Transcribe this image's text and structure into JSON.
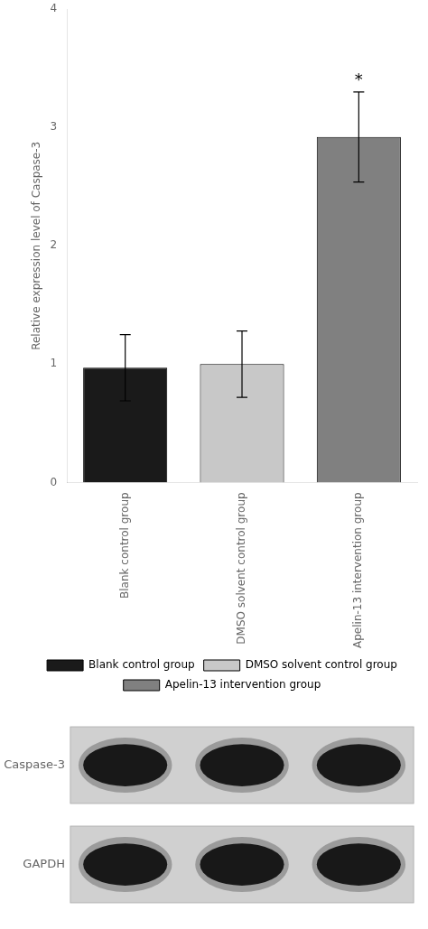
{
  "chart_data": {
    "type": "bar",
    "categories": [
      "Blank control group",
      "DMSO solvent control group",
      "Apelin-13 intervention group"
    ],
    "values": [
      0.97,
      1.0,
      2.92
    ],
    "errors": [
      0.28,
      0.28,
      0.38
    ],
    "colors": [
      "#1a1a1a",
      "#c8c8c8",
      "#808080"
    ],
    "ylabel": "Relative expression level of Caspase-3",
    "ylim": [
      0,
      4
    ],
    "yticks": [
      0,
      1,
      2,
      3,
      4
    ],
    "grid": false,
    "legend": "bottom",
    "annotations": [
      {
        "text": "*",
        "category": "Apelin-13 intervention group"
      },
      {
        "text": "Caspase-3"
      },
      {
        "text": "GAPDH"
      }
    ]
  }
}
